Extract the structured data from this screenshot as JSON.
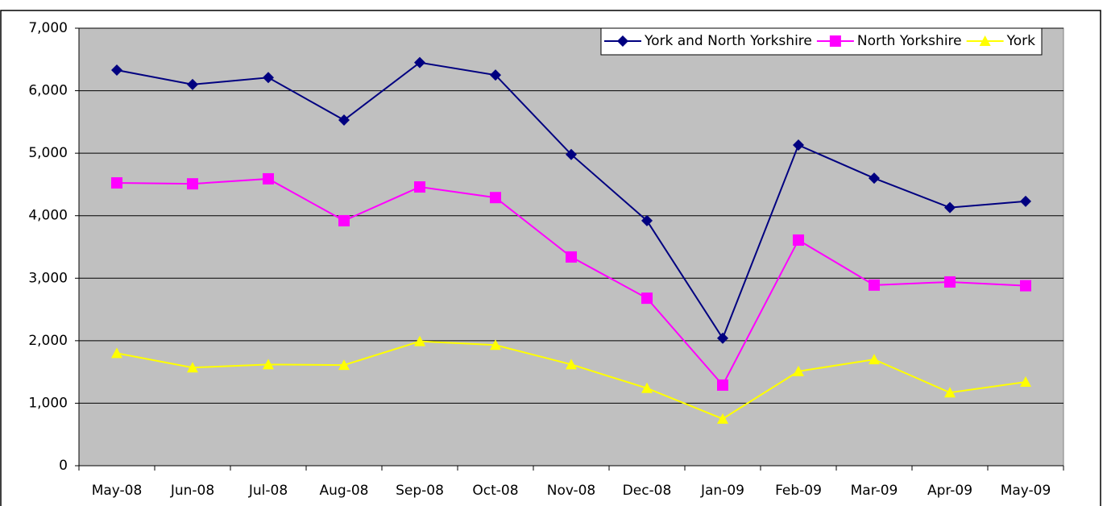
{
  "chart_data": {
    "type": "line",
    "categories": [
      "May-08",
      "Jun-08",
      "Jul-08",
      "Aug-08",
      "Sep-08",
      "Oct-08",
      "Nov-08",
      "Dec-08",
      "Jan-09",
      "Feb-09",
      "Mar-09",
      "Apr-09",
      "May-09"
    ],
    "series": [
      {
        "name": "York and North Yorkshire",
        "color": "#000080",
        "marker": "diamond",
        "values": [
          6330,
          6100,
          6210,
          5530,
          6450,
          6250,
          4980,
          3920,
          2040,
          5130,
          4600,
          4130,
          4230
        ]
      },
      {
        "name": "North Yorkshire",
        "color": "#ff00ff",
        "marker": "square",
        "values": [
          4525,
          4510,
          4590,
          3920,
          4460,
          4290,
          3340,
          2680,
          1290,
          3610,
          2890,
          2940,
          2880
        ]
      },
      {
        "name": "York",
        "color": "#ffff00",
        "marker": "triangle",
        "values": [
          1800,
          1570,
          1620,
          1610,
          1990,
          1930,
          1620,
          1240,
          750,
          1510,
          1700,
          1170,
          1340
        ]
      }
    ],
    "ylim": [
      0,
      7000
    ],
    "yticks": [
      0,
      {
        "value": 1000,
        "label": "1,000"
      },
      {
        "value": 2000,
        "label": "2,000"
      },
      {
        "value": 3000,
        "label": "3,000"
      },
      {
        "value": 4000,
        "label": "4,000"
      },
      {
        "value": 5000,
        "label": "5,000"
      },
      {
        "value": 6000,
        "label": "6,000"
      },
      {
        "value": 7000,
        "label": "7,000"
      }
    ],
    "grid": true,
    "plot_background": "#c0c0c0",
    "legend": "upper right"
  }
}
